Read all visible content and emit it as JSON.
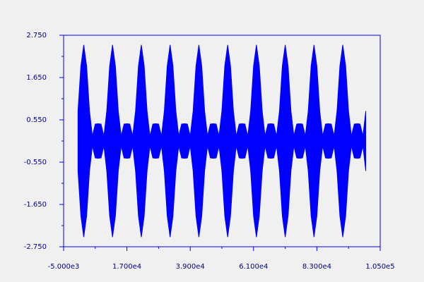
{
  "chart_data": {
    "type": "area",
    "x": [
      0,
      1000,
      2000,
      3000,
      4000,
      5000,
      6000,
      7000,
      8000,
      9000,
      10000,
      11000,
      12000,
      13000,
      14000,
      15000,
      16000,
      17000,
      18000,
      19000,
      20000,
      21000,
      22000,
      23000,
      24000,
      25000,
      26000,
      27000,
      28000,
      29000,
      30000,
      31000,
      32000,
      33000,
      34000,
      35000,
      36000,
      37000,
      38000,
      39000,
      40000,
      41000,
      42000,
      43000,
      44000,
      45000,
      46000,
      47000,
      48000,
      49000,
      50000,
      51000,
      52000,
      53000,
      54000,
      55000,
      56000,
      57000,
      58000,
      59000,
      60000,
      61000,
      62000,
      63000,
      64000,
      65000,
      66000,
      67000,
      68000,
      69000,
      70000,
      71000,
      72000,
      73000,
      74000,
      75000,
      76000,
      77000,
      78000,
      79000,
      80000,
      81000,
      82000,
      83000,
      84000,
      85000,
      86000,
      87000,
      88000,
      89000,
      90000,
      91000,
      92000,
      93000,
      94000,
      95000,
      96000,
      97000,
      98000,
      99000,
      100000
    ],
    "series": [
      {
        "color": "#0000ff",
        "values": [
          0.78,
          1.95,
          2.5,
          1.95,
          0.78,
          0.13,
          0.44,
          0.45,
          0.44,
          0.13,
          0.78,
          1.95,
          2.5,
          1.95,
          0.78,
          0.13,
          0.44,
          0.45,
          0.44,
          0.13,
          0.78,
          1.95,
          2.5,
          1.95,
          0.78,
          0.13,
          0.44,
          0.45,
          0.44,
          0.13,
          0.78,
          1.95,
          2.5,
          1.95,
          0.78,
          0.13,
          0.44,
          0.45,
          0.44,
          0.13,
          0.78,
          1.95,
          2.5,
          1.95,
          0.78,
          0.13,
          0.44,
          0.45,
          0.44,
          0.13,
          0.78,
          1.95,
          2.5,
          1.95,
          0.78,
          0.13,
          0.44,
          0.45,
          0.44,
          0.13,
          0.78,
          1.95,
          2.5,
          1.95,
          0.78,
          0.13,
          0.44,
          0.45,
          0.44,
          0.13,
          0.78,
          1.95,
          2.5,
          1.95,
          0.78,
          0.13,
          0.44,
          0.45,
          0.44,
          0.13,
          0.78,
          1.95,
          2.5,
          1.95,
          0.78,
          0.13,
          0.44,
          0.45,
          0.44,
          0.13,
          0.78,
          1.95,
          2.5,
          1.95,
          0.78,
          0.13,
          0.44,
          0.45,
          0.44,
          0.13,
          0.78
        ]
      },
      {
        "color": "#0000ff",
        "values": [
          -0.78,
          -1.95,
          -2.5,
          -1.95,
          -0.78,
          -0.13,
          -0.44,
          -0.45,
          -0.44,
          -0.13,
          -0.78,
          -1.95,
          -2.5,
          -1.95,
          -0.78,
          -0.13,
          -0.44,
          -0.45,
          -0.44,
          -0.13,
          -0.78,
          -1.95,
          -2.5,
          -1.95,
          -0.78,
          -0.13,
          -0.44,
          -0.45,
          -0.44,
          -0.13,
          -0.78,
          -1.95,
          -2.5,
          -1.95,
          -0.78,
          -0.13,
          -0.44,
          -0.45,
          -0.44,
          -0.13,
          -0.78,
          -1.95,
          -2.5,
          -1.95,
          -0.78,
          -0.13,
          -0.44,
          -0.45,
          -0.44,
          -0.13,
          -0.78,
          -1.95,
          -2.5,
          -1.95,
          -0.78,
          -0.13,
          -0.44,
          -0.45,
          -0.44,
          -0.13,
          -0.78,
          -1.95,
          -2.5,
          -1.95,
          -0.78,
          -0.13,
          -0.44,
          -0.45,
          -0.44,
          -0.13,
          -0.78,
          -1.95,
          -2.5,
          -1.95,
          -0.78,
          -0.13,
          -0.44,
          -0.45,
          -0.44,
          -0.13,
          -0.78,
          -1.95,
          -2.5,
          -1.95,
          -0.78,
          -0.13,
          -0.44,
          -0.45,
          -0.44,
          -0.13,
          -0.78,
          -1.95,
          -2.5,
          -1.95,
          -0.78,
          -0.13,
          -0.44,
          -0.45,
          -0.44,
          -0.13,
          -0.78
        ]
      }
    ],
    "xlim": [
      -5000,
      105000
    ],
    "ylim": [
      -2.75,
      2.75
    ],
    "xticks": [
      {
        "value": -5000,
        "label": "-5.000e3"
      },
      {
        "value": 17000,
        "label": "1.700e4"
      },
      {
        "value": 39000,
        "label": "3.900e4"
      },
      {
        "value": 61000,
        "label": "6.100e4"
      },
      {
        "value": 83000,
        "label": "8.300e4"
      },
      {
        "value": 105000,
        "label": "1.050e5"
      }
    ],
    "xminorticks": [
      6000,
      28000,
      50000,
      72000,
      94000
    ],
    "yticks": [
      {
        "value": 2.75,
        "label": "2.750"
      },
      {
        "value": 1.65,
        "label": "1.650"
      },
      {
        "value": 0.55,
        "label": "0.550"
      },
      {
        "value": -0.55,
        "label": "-0.550"
      },
      {
        "value": -1.65,
        "label": "-1.650"
      },
      {
        "value": -2.75,
        "label": "-2.750"
      }
    ],
    "yminorticks": [
      2.2,
      1.1,
      0,
      -1.1,
      -2.2
    ],
    "axis_color": "#0000ff"
  }
}
